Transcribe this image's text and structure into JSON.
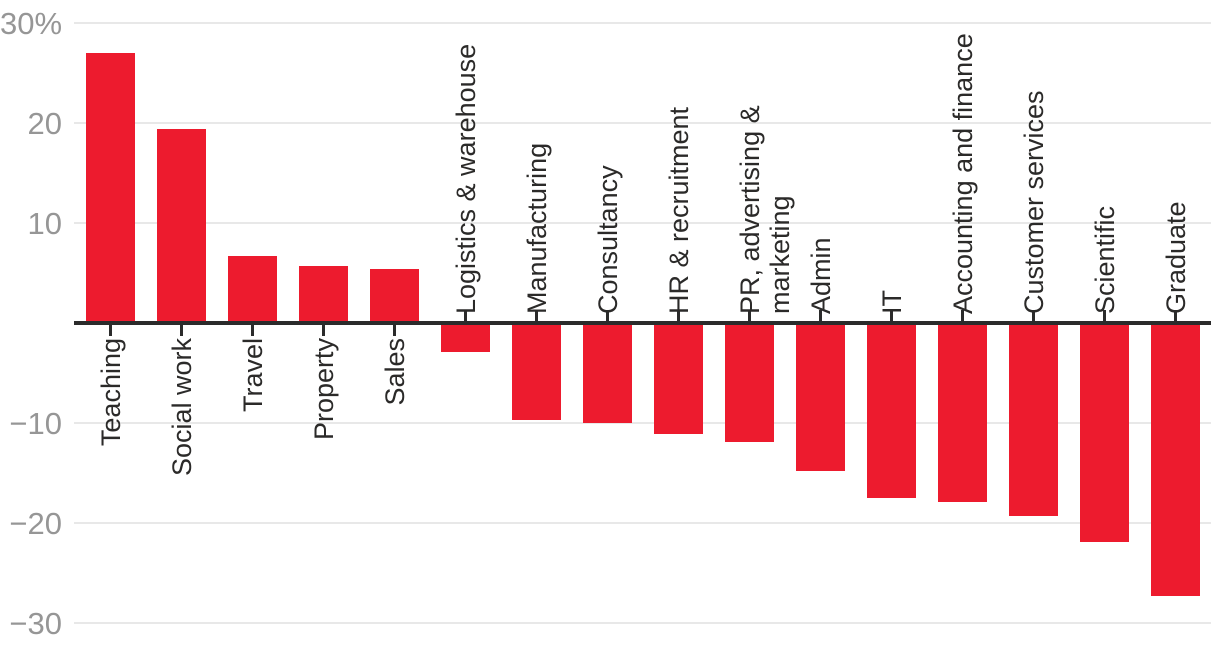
{
  "chart_data": {
    "type": "bar",
    "title": "",
    "xlabel": "",
    "ylabel": "",
    "unit": "%",
    "ylim": [
      -30,
      30
    ],
    "grid": "horizontal-gridlines",
    "legend": "none",
    "categories": [
      "Teaching",
      "Social work",
      "Travel",
      "Property",
      "Sales",
      "Logistics & warehouse",
      "Manufacturing",
      "Consultancy",
      "HR & recruitment",
      "PR, advertising & marketing",
      "Admin",
      "IT",
      "Accounting and finance",
      "Customer services",
      "Scientific",
      "Graduate"
    ],
    "values": [
      27.0,
      19.4,
      6.7,
      5.7,
      5.4,
      -2.9,
      -9.7,
      -10.0,
      -11.1,
      -11.9,
      -14.8,
      -17.5,
      -17.9,
      -19.3,
      -21.9,
      -27.3
    ],
    "display_labels": [
      "Teaching",
      "Social work",
      "Travel",
      "Property",
      "Sales",
      "Logistics & warehouse",
      "Manufacturing",
      "Consultancy",
      "HR & recruitment",
      "PR, advertising &\nmarketing",
      "Admin",
      "IT",
      "Accounting and finance",
      "Customer services",
      "Scientific",
      "Graduate"
    ],
    "yticks": [
      {
        "value": 30,
        "label": "30%"
      },
      {
        "value": 20,
        "label": "20"
      },
      {
        "value": 10,
        "label": "10"
      },
      {
        "value": -10,
        "label": "−10"
      },
      {
        "value": -20,
        "label": "−20"
      },
      {
        "value": -30,
        "label": "−30"
      }
    ]
  },
  "colors": {
    "bar": "#ED1B2E",
    "axis_line": "#2B2B2B",
    "gridline": "#E8E8E8",
    "y_tick_label": "#969696",
    "category_label": "#2B2A29",
    "background": "#FFFFFF"
  }
}
